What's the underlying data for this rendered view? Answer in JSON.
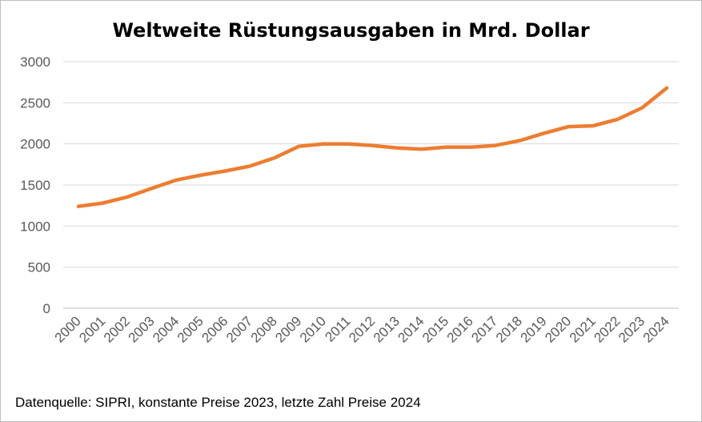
{
  "chart_data": {
    "type": "line",
    "title": "Weltweite Rüstungsausgaben  in Mrd. Dollar",
    "xlabel": "",
    "ylabel": "",
    "ylim": [
      0,
      3000
    ],
    "yticks": [
      "0",
      "500",
      "1000",
      "1500",
      "2000",
      "2500",
      "3000"
    ],
    "categories": [
      "2000",
      "2001",
      "2002",
      "2003",
      "2004",
      "2005",
      "2006",
      "2007",
      "2008",
      "2009",
      "2010",
      "2011",
      "2012",
      "2013",
      "2014",
      "2015",
      "2016",
      "2017",
      "2018",
      "2019",
      "2020",
      "2021",
      "2022",
      "2023",
      "2024"
    ],
    "series": [
      {
        "color": "#ED7D31",
        "values": [
          1240,
          1280,
          1355,
          1460,
          1560,
          1620,
          1670,
          1730,
          1830,
          1970,
          2000,
          2000,
          1980,
          1950,
          1935,
          1960,
          1960,
          1980,
          2040,
          2130,
          2210,
          2220,
          2300,
          2440,
          2680
        ]
      }
    ],
    "grid": true,
    "legend": "none"
  },
  "note": "Datenquelle: SIPRI, konstante Preise 2023, letzte Zahl Preise 2024"
}
